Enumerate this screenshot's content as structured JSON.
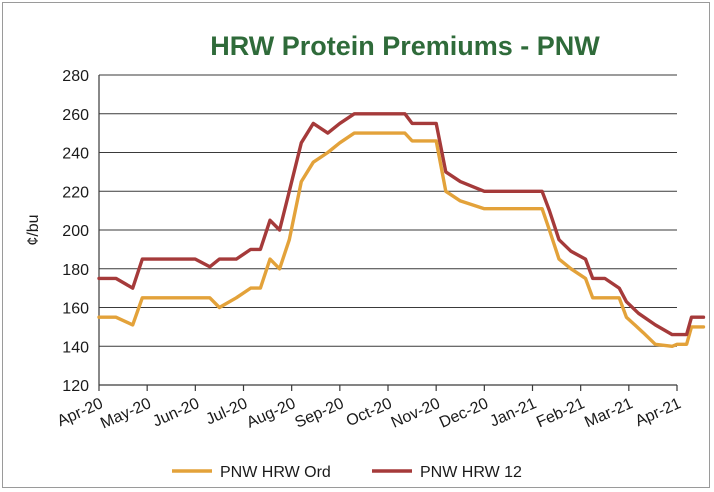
{
  "chart_data": {
    "type": "line",
    "title": "HRW Protein Premiums - PNW",
    "ylabel": "¢/bu",
    "xlabel": "",
    "ylim": [
      120,
      280
    ],
    "yticks": [
      120,
      140,
      160,
      180,
      200,
      220,
      240,
      260,
      280
    ],
    "grid": "horizontal",
    "legend_position": "bottom",
    "x_tick_labels": [
      "Apr-20",
      "May-20",
      "Jun-20",
      "Jul-20",
      "Aug-20",
      "Sep-20",
      "Oct-20",
      "Nov-20",
      "Dec-20",
      "Jan-21",
      "Feb-21",
      "Mar-21",
      "Apr-21"
    ],
    "series": [
      {
        "name": "PNW HRW Ord",
        "color": "#e3a23a",
        "points": [
          [
            0,
            155
          ],
          [
            0.35,
            155
          ],
          [
            0.7,
            151
          ],
          [
            0.9,
            165
          ],
          [
            1.5,
            165
          ],
          [
            2.0,
            165
          ],
          [
            2.3,
            165
          ],
          [
            2.5,
            160
          ],
          [
            2.85,
            165
          ],
          [
            3.15,
            170
          ],
          [
            3.35,
            170
          ],
          [
            3.55,
            185
          ],
          [
            3.75,
            180
          ],
          [
            3.95,
            195
          ],
          [
            4.2,
            225
          ],
          [
            4.45,
            235
          ],
          [
            4.75,
            240
          ],
          [
            5.0,
            245
          ],
          [
            5.3,
            250
          ],
          [
            5.6,
            250
          ],
          [
            6.0,
            250
          ],
          [
            6.35,
            250
          ],
          [
            6.5,
            246
          ],
          [
            7.0,
            246
          ],
          [
            7.2,
            220
          ],
          [
            7.5,
            215
          ],
          [
            8.0,
            211
          ],
          [
            8.5,
            211
          ],
          [
            9.0,
            211
          ],
          [
            9.2,
            211
          ],
          [
            9.35,
            200
          ],
          [
            9.55,
            185
          ],
          [
            9.8,
            180
          ],
          [
            10.1,
            175
          ],
          [
            10.25,
            165
          ],
          [
            10.5,
            165
          ],
          [
            10.8,
            165
          ],
          [
            10.95,
            155
          ],
          [
            11.3,
            147
          ],
          [
            11.55,
            141
          ],
          [
            11.9,
            140
          ],
          [
            12.0,
            141
          ],
          [
            12.2,
            141
          ],
          [
            12.3,
            150
          ],
          [
            12.55,
            150
          ]
        ]
      },
      {
        "name": "PNW HRW 12",
        "color": "#a53a3a",
        "points": [
          [
            0,
            175
          ],
          [
            0.35,
            175
          ],
          [
            0.7,
            170
          ],
          [
            0.9,
            185
          ],
          [
            1.5,
            185
          ],
          [
            2.0,
            185
          ],
          [
            2.3,
            181
          ],
          [
            2.5,
            185
          ],
          [
            2.85,
            185
          ],
          [
            3.15,
            190
          ],
          [
            3.35,
            190
          ],
          [
            3.55,
            205
          ],
          [
            3.75,
            200
          ],
          [
            3.95,
            220
          ],
          [
            4.2,
            245
          ],
          [
            4.45,
            255
          ],
          [
            4.75,
            250
          ],
          [
            5.0,
            255
          ],
          [
            5.3,
            260
          ],
          [
            5.6,
            260
          ],
          [
            6.0,
            260
          ],
          [
            6.35,
            260
          ],
          [
            6.5,
            255
          ],
          [
            7.0,
            255
          ],
          [
            7.2,
            230
          ],
          [
            7.5,
            225
          ],
          [
            7.8,
            222
          ],
          [
            8.0,
            220
          ],
          [
            8.5,
            220
          ],
          [
            9.0,
            220
          ],
          [
            9.2,
            220
          ],
          [
            9.35,
            210
          ],
          [
            9.55,
            195
          ],
          [
            9.8,
            189
          ],
          [
            10.1,
            185
          ],
          [
            10.25,
            175
          ],
          [
            10.5,
            175
          ],
          [
            10.8,
            170
          ],
          [
            10.95,
            163
          ],
          [
            11.2,
            157
          ],
          [
            11.55,
            151
          ],
          [
            11.9,
            146
          ],
          [
            12.0,
            146
          ],
          [
            12.2,
            146
          ],
          [
            12.3,
            155
          ],
          [
            12.55,
            155
          ]
        ]
      }
    ]
  }
}
